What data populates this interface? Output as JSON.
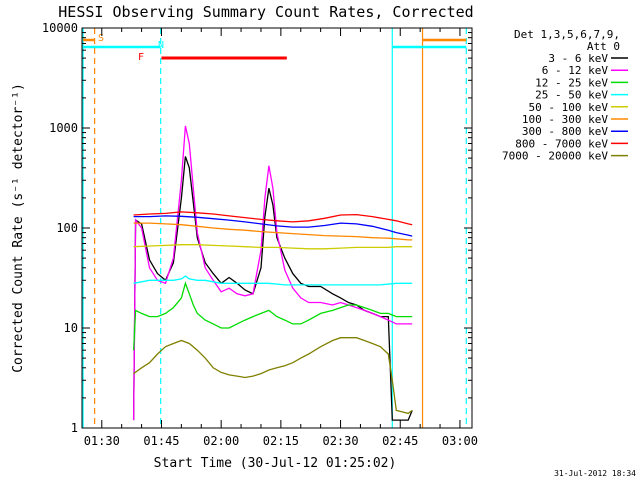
{
  "chart_data": {
    "type": "line",
    "title": "HESSI Observing Summary Count Rates, Corrected",
    "xlabel": "Start Time (30-Jul-12 01:25:02)",
    "ylabel": "Corrected Count Rate (s⁻¹ detector⁻¹)",
    "footer": "31-Jul-2012 18:34",
    "x_ticks": [
      "01:30",
      "01:45",
      "02:00",
      "02:15",
      "02:30",
      "02:45",
      "03:00"
    ],
    "x_tick_minutes": [
      90,
      105,
      120,
      135,
      150,
      165,
      180
    ],
    "xlim_minutes": [
      85.03,
      183.03
    ],
    "y_scale": "log",
    "ylim": [
      1,
      10000
    ],
    "y_ticks": [
      1,
      10,
      100,
      1000,
      10000
    ],
    "legend": {
      "position": "right",
      "header": [
        "Det 1,3,5,6,7,9,",
        "Att 0"
      ]
    },
    "series": [
      {
        "name": "3 - 6 keV",
        "color": "#000000",
        "points": [
          [
            98,
            1.2
          ],
          [
            98.5,
            120
          ],
          [
            100,
            110
          ],
          [
            102,
            48
          ],
          [
            104,
            35
          ],
          [
            106,
            30
          ],
          [
            108,
            45
          ],
          [
            110,
            200
          ],
          [
            111,
            520
          ],
          [
            112,
            400
          ],
          [
            113,
            180
          ],
          [
            114,
            80
          ],
          [
            116,
            45
          ],
          [
            118,
            35
          ],
          [
            120,
            28
          ],
          [
            122,
            32
          ],
          [
            124,
            28
          ],
          [
            126,
            24
          ],
          [
            128,
            22
          ],
          [
            130,
            40
          ],
          [
            131,
            130
          ],
          [
            132,
            250
          ],
          [
            133,
            170
          ],
          [
            134,
            80
          ],
          [
            136,
            50
          ],
          [
            138,
            35
          ],
          [
            140,
            28
          ],
          [
            142,
            26
          ],
          [
            145,
            26
          ],
          [
            148,
            22
          ],
          [
            150,
            20
          ],
          [
            152,
            18
          ],
          [
            154,
            17
          ],
          [
            156,
            15
          ],
          [
            158,
            14
          ],
          [
            160,
            13
          ],
          [
            162,
            13
          ],
          [
            163,
            1.2
          ],
          [
            164,
            1.2
          ],
          [
            167,
            1.2
          ],
          [
            168,
            1.5
          ]
        ]
      },
      {
        "name": "6 - 12 keV",
        "color": "#ff00ff",
        "points": [
          [
            98,
            1.2
          ],
          [
            98.5,
            120
          ],
          [
            100,
            100
          ],
          [
            102,
            40
          ],
          [
            104,
            30
          ],
          [
            106,
            28
          ],
          [
            108,
            50
          ],
          [
            110,
            300
          ],
          [
            111,
            1050
          ],
          [
            112,
            700
          ],
          [
            113,
            250
          ],
          [
            114,
            90
          ],
          [
            116,
            40
          ],
          [
            118,
            30
          ],
          [
            120,
            23
          ],
          [
            122,
            25
          ],
          [
            124,
            22
          ],
          [
            126,
            21
          ],
          [
            128,
            22
          ],
          [
            130,
            60
          ],
          [
            131,
            200
          ],
          [
            132,
            420
          ],
          [
            133,
            250
          ],
          [
            134,
            90
          ],
          [
            136,
            38
          ],
          [
            138,
            25
          ],
          [
            140,
            20
          ],
          [
            142,
            18
          ],
          [
            145,
            18
          ],
          [
            148,
            17
          ],
          [
            150,
            18
          ],
          [
            152,
            17
          ],
          [
            154,
            16
          ],
          [
            156,
            15
          ],
          [
            158,
            14
          ],
          [
            160,
            13
          ],
          [
            162,
            12
          ],
          [
            164,
            11
          ],
          [
            167,
            11
          ],
          [
            168,
            11
          ]
        ]
      },
      {
        "name": "12 - 25 keV",
        "color": "#00dd00",
        "points": [
          [
            98,
            6
          ],
          [
            98.5,
            15
          ],
          [
            100,
            14
          ],
          [
            102,
            13
          ],
          [
            104,
            13
          ],
          [
            106,
            14
          ],
          [
            108,
            16
          ],
          [
            110,
            20
          ],
          [
            111,
            28
          ],
          [
            112,
            22
          ],
          [
            113,
            17
          ],
          [
            114,
            14
          ],
          [
            116,
            12
          ],
          [
            118,
            11
          ],
          [
            120,
            10
          ],
          [
            122,
            10
          ],
          [
            124,
            11
          ],
          [
            126,
            12
          ],
          [
            128,
            13
          ],
          [
            130,
            14
          ],
          [
            132,
            15
          ],
          [
            134,
            13
          ],
          [
            136,
            12
          ],
          [
            138,
            11
          ],
          [
            140,
            11
          ],
          [
            142,
            12
          ],
          [
            145,
            14
          ],
          [
            148,
            15
          ],
          [
            150,
            16
          ],
          [
            152,
            17
          ],
          [
            154,
            17
          ],
          [
            156,
            16
          ],
          [
            158,
            15
          ],
          [
            160,
            14
          ],
          [
            162,
            14
          ],
          [
            164,
            13
          ],
          [
            167,
            13
          ],
          [
            168,
            13
          ]
        ]
      },
      {
        "name": "25 - 50 keV",
        "color": "#00ffff",
        "points": [
          [
            98,
            28
          ],
          [
            100,
            29
          ],
          [
            102,
            30
          ],
          [
            104,
            30
          ],
          [
            106,
            30
          ],
          [
            108,
            30
          ],
          [
            110,
            31
          ],
          [
            111,
            33
          ],
          [
            112,
            31
          ],
          [
            114,
            30
          ],
          [
            116,
            30
          ],
          [
            118,
            29
          ],
          [
            120,
            28
          ],
          [
            124,
            28
          ],
          [
            128,
            28
          ],
          [
            132,
            28
          ],
          [
            136,
            27
          ],
          [
            140,
            27
          ],
          [
            144,
            27
          ],
          [
            148,
            27
          ],
          [
            152,
            27
          ],
          [
            156,
            27
          ],
          [
            160,
            27
          ],
          [
            164,
            28
          ],
          [
            167,
            28
          ],
          [
            168,
            28
          ]
        ]
      },
      {
        "name": "50 - 100 keV",
        "color": "#cccc00",
        "points": [
          [
            98,
            65
          ],
          [
            102,
            66
          ],
          [
            106,
            67
          ],
          [
            110,
            68
          ],
          [
            114,
            68
          ],
          [
            118,
            67
          ],
          [
            122,
            66
          ],
          [
            126,
            65
          ],
          [
            130,
            64
          ],
          [
            134,
            64
          ],
          [
            138,
            63
          ],
          [
            142,
            62
          ],
          [
            146,
            62
          ],
          [
            150,
            63
          ],
          [
            154,
            64
          ],
          [
            158,
            64
          ],
          [
            162,
            64
          ],
          [
            164,
            65
          ],
          [
            167,
            65
          ],
          [
            168,
            65
          ]
        ]
      },
      {
        "name": "100 - 300 keV",
        "color": "#ff8800",
        "points": [
          [
            98,
            112
          ],
          [
            102,
            112
          ],
          [
            106,
            110
          ],
          [
            110,
            108
          ],
          [
            114,
            104
          ],
          [
            118,
            100
          ],
          [
            122,
            97
          ],
          [
            126,
            95
          ],
          [
            130,
            92
          ],
          [
            134,
            90
          ],
          [
            138,
            88
          ],
          [
            142,
            86
          ],
          [
            146,
            84
          ],
          [
            150,
            83
          ],
          [
            154,
            82
          ],
          [
            158,
            80
          ],
          [
            162,
            79
          ],
          [
            164,
            78
          ],
          [
            167,
            76
          ],
          [
            168,
            76
          ]
        ]
      },
      {
        "name": "300 - 800 keV",
        "color": "#0000ff",
        "points": [
          [
            98,
            130
          ],
          [
            102,
            130
          ],
          [
            106,
            132
          ],
          [
            110,
            131
          ],
          [
            114,
            128
          ],
          [
            118,
            124
          ],
          [
            122,
            120
          ],
          [
            126,
            115
          ],
          [
            130,
            110
          ],
          [
            134,
            105
          ],
          [
            138,
            102
          ],
          [
            142,
            102
          ],
          [
            146,
            106
          ],
          [
            150,
            112
          ],
          [
            154,
            110
          ],
          [
            158,
            104
          ],
          [
            162,
            95
          ],
          [
            164,
            90
          ],
          [
            167,
            85
          ],
          [
            168,
            83
          ]
        ]
      },
      {
        "name": "800 - 7000 keV",
        "color": "#ff0000",
        "points": [
          [
            98,
            135
          ],
          [
            102,
            138
          ],
          [
            106,
            140
          ],
          [
            110,
            145
          ],
          [
            114,
            142
          ],
          [
            118,
            138
          ],
          [
            122,
            132
          ],
          [
            126,
            127
          ],
          [
            130,
            122
          ],
          [
            134,
            118
          ],
          [
            138,
            115
          ],
          [
            142,
            118
          ],
          [
            146,
            125
          ],
          [
            150,
            135
          ],
          [
            154,
            136
          ],
          [
            158,
            130
          ],
          [
            162,
            122
          ],
          [
            164,
            118
          ],
          [
            167,
            110
          ],
          [
            168,
            108
          ]
        ]
      },
      {
        "name": "7000 - 20000 keV",
        "color": "#808000",
        "points": [
          [
            98,
            3.5
          ],
          [
            100,
            4
          ],
          [
            102,
            4.5
          ],
          [
            104,
            5.5
          ],
          [
            106,
            6.5
          ],
          [
            108,
            7
          ],
          [
            110,
            7.5
          ],
          [
            112,
            7
          ],
          [
            114,
            6
          ],
          [
            116,
            5
          ],
          [
            118,
            4
          ],
          [
            120,
            3.6
          ],
          [
            122,
            3.4
          ],
          [
            124,
            3.3
          ],
          [
            126,
            3.2
          ],
          [
            128,
            3.3
          ],
          [
            130,
            3.5
          ],
          [
            132,
            3.8
          ],
          [
            134,
            4
          ],
          [
            136,
            4.2
          ],
          [
            138,
            4.5
          ],
          [
            140,
            5
          ],
          [
            142,
            5.5
          ],
          [
            145,
            6.5
          ],
          [
            148,
            7.5
          ],
          [
            150,
            8
          ],
          [
            152,
            8
          ],
          [
            154,
            8
          ],
          [
            156,
            7.5
          ],
          [
            158,
            7
          ],
          [
            160,
            6.5
          ],
          [
            162,
            5.5
          ],
          [
            163,
            3
          ],
          [
            164,
            1.5
          ],
          [
            167,
            1.4
          ],
          [
            168,
            1.5
          ]
        ]
      }
    ],
    "annotations": {
      "markers": [
        {
          "label": "S",
          "color": "#ff8800"
        },
        {
          "label": "N",
          "color": "#00ffff"
        },
        {
          "label": "F",
          "color": "#ff0000"
        }
      ],
      "vertical_lines": [
        {
          "minute": 85.3,
          "color": "#00ffff",
          "style": "solid"
        },
        {
          "minute": 88.2,
          "color": "#ff8800",
          "style": "dashed"
        },
        {
          "minute": 104.8,
          "color": "#00ffff",
          "style": "dashed"
        },
        {
          "minute": 163.0,
          "color": "#00ffff",
          "style": "solid"
        },
        {
          "minute": 170.6,
          "color": "#ff8800",
          "style": "solid"
        },
        {
          "minute": 181.6,
          "color": "#00ffff",
          "style": "dashed"
        }
      ],
      "intervals": [
        {
          "label": "S",
          "color": "#ff8800",
          "from": 85.3,
          "to": 88.2
        },
        {
          "label": "N",
          "color": "#00ffff",
          "from": 85.3,
          "to": 104.8
        },
        {
          "label": "F",
          "color": "#ff0000",
          "from": 105.0,
          "to": 136.5
        },
        {
          "label": "S",
          "color": "#ff8800",
          "from": 170.6,
          "to": 181.6
        },
        {
          "label": "N",
          "color": "#00ffff",
          "from": 163.0,
          "to": 181.6
        }
      ]
    }
  }
}
